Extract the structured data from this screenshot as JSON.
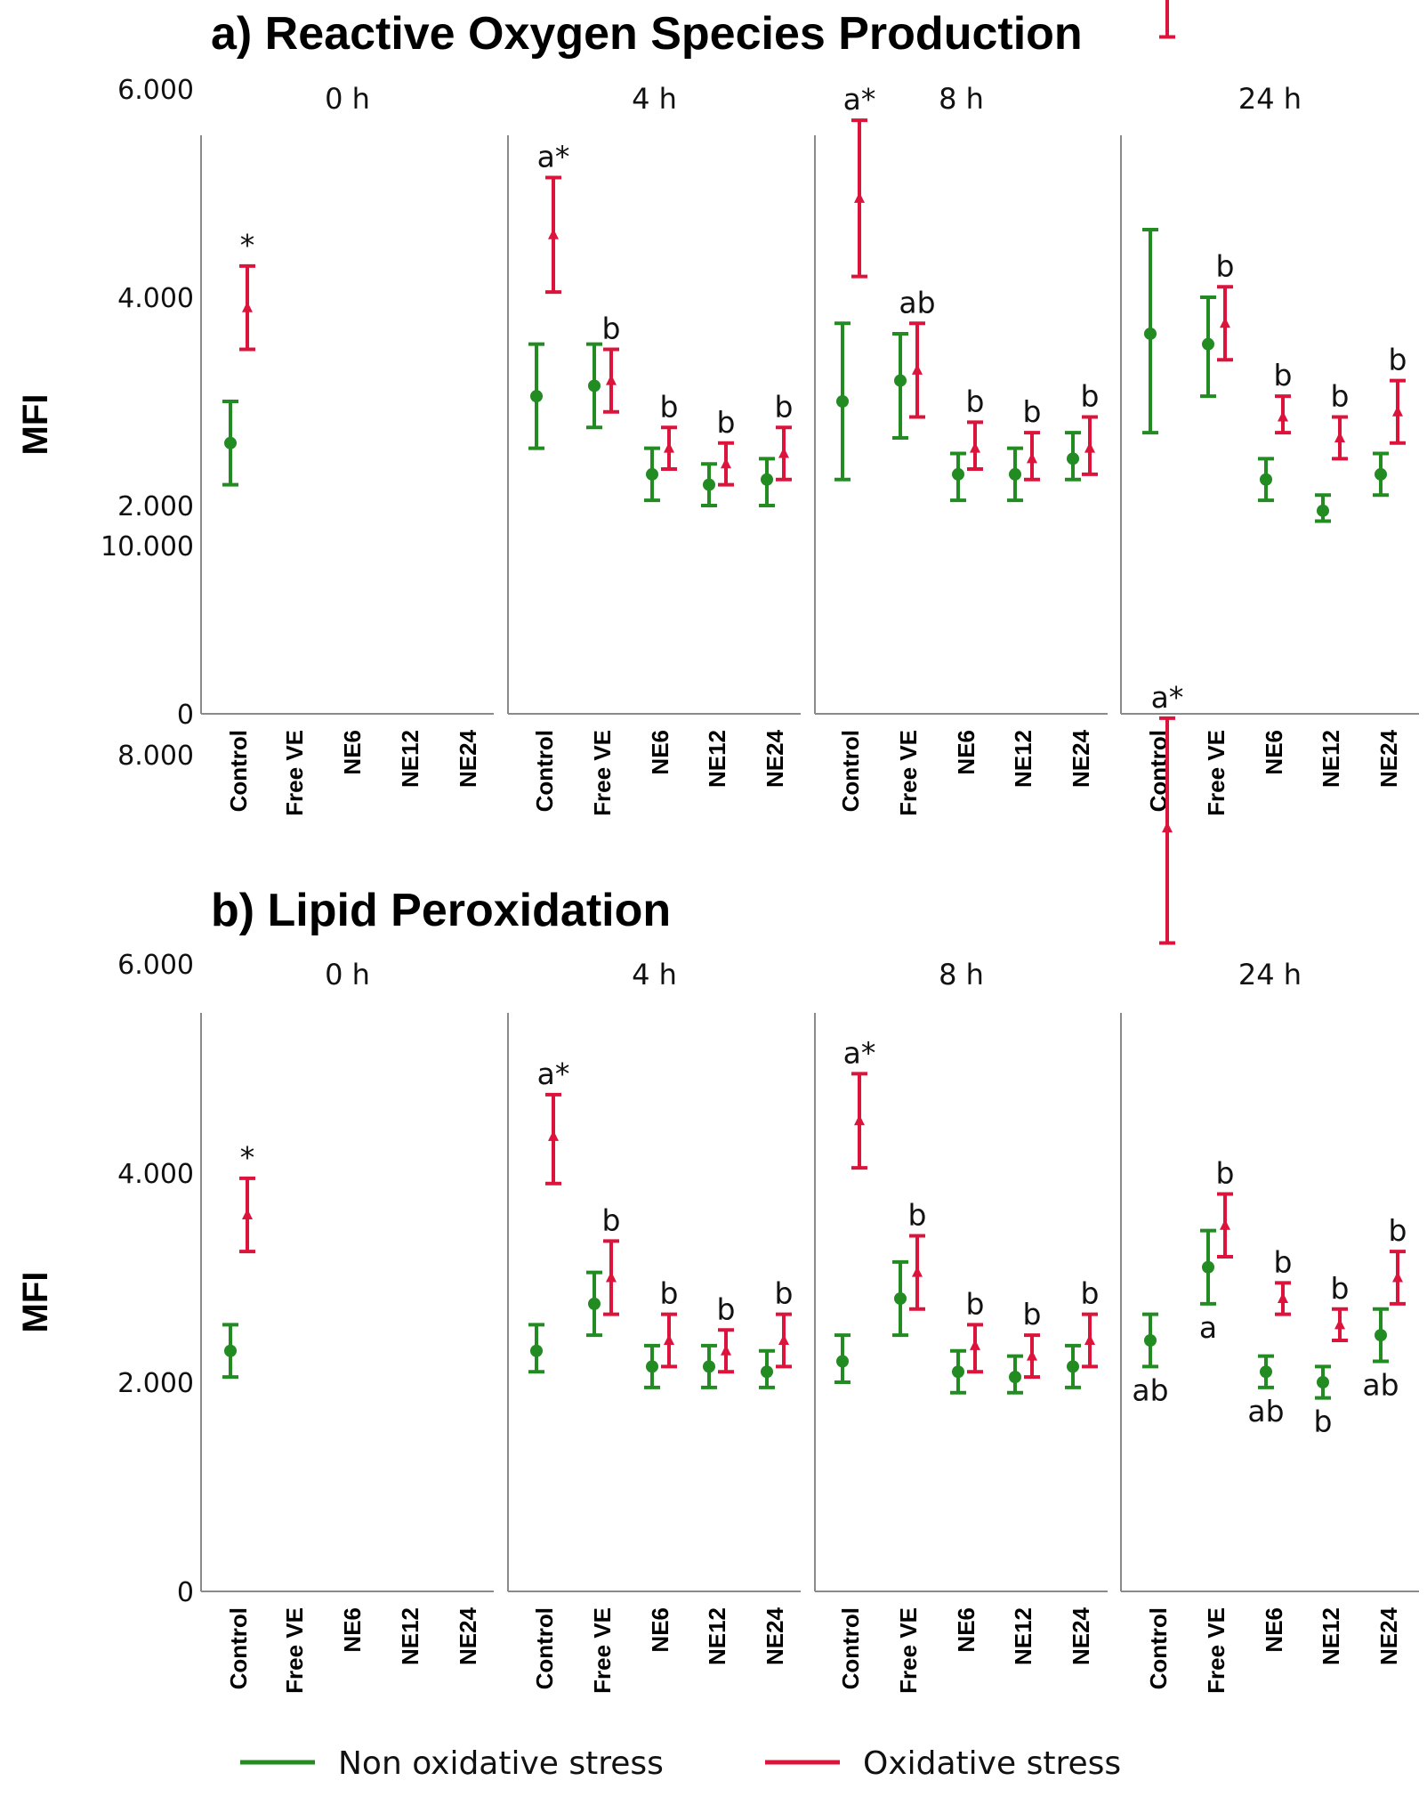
{
  "colors": {
    "non_oxidative": "#228b22",
    "oxidative": "#dc143c"
  },
  "legend": [
    {
      "label": "Non oxidative stress",
      "color": "#228b22"
    },
    {
      "label": "Oxidative stress",
      "color": "#dc143c"
    }
  ],
  "chart_data": [
    {
      "type": "scatter",
      "title": "a) Reactive Oxygen Species Production",
      "ylabel": "MFI",
      "ylim": [
        0,
        11000
      ],
      "yticks": [
        0,
        2000,
        4000,
        6000,
        8000,
        10000
      ],
      "ytick_labels": [
        "0",
        "2.000",
        "4.000",
        "6.000",
        "8.000",
        "10.000"
      ],
      "panels": [
        "0 h",
        "4 h",
        "8 h",
        "24 h"
      ],
      "categories": [
        "Control",
        "Free VE",
        "NE6",
        "NE12",
        "NE24"
      ],
      "series": [
        {
          "name": "Non oxidative stress",
          "points": [
            {
              "panel": "0 h",
              "category": "Control",
              "y": 2600,
              "low": 2200,
              "high": 3000
            },
            {
              "panel": "4 h",
              "category": "Control",
              "y": 3050,
              "low": 2550,
              "high": 3550
            },
            {
              "panel": "4 h",
              "category": "Free VE",
              "y": 3150,
              "low": 2750,
              "high": 3550
            },
            {
              "panel": "4 h",
              "category": "NE6",
              "y": 2300,
              "low": 2050,
              "high": 2550
            },
            {
              "panel": "4 h",
              "category": "NE12",
              "y": 2200,
              "low": 2000,
              "high": 2400
            },
            {
              "panel": "4 h",
              "category": "NE24",
              "y": 2250,
              "low": 2000,
              "high": 2450
            },
            {
              "panel": "8 h",
              "category": "Control",
              "y": 3000,
              "low": 2250,
              "high": 3750
            },
            {
              "panel": "8 h",
              "category": "Free VE",
              "y": 3200,
              "low": 2650,
              "high": 3650
            },
            {
              "panel": "8 h",
              "category": "NE6",
              "y": 2300,
              "low": 2050,
              "high": 2500
            },
            {
              "panel": "8 h",
              "category": "NE12",
              "y": 2300,
              "low": 2050,
              "high": 2550
            },
            {
              "panel": "8 h",
              "category": "NE24",
              "y": 2450,
              "low": 2250,
              "high": 2700
            },
            {
              "panel": "24 h",
              "category": "Control",
              "y": 3650,
              "low": 2700,
              "high": 4650
            },
            {
              "panel": "24 h",
              "category": "Free VE",
              "y": 3550,
              "low": 3050,
              "high": 4000
            },
            {
              "panel": "24 h",
              "category": "NE6",
              "y": 2250,
              "low": 2050,
              "high": 2450
            },
            {
              "panel": "24 h",
              "category": "NE12",
              "y": 1950,
              "low": 1850,
              "high": 2100
            },
            {
              "panel": "24 h",
              "category": "NE24",
              "y": 2300,
              "low": 2100,
              "high": 2500
            }
          ]
        },
        {
          "name": "Oxidative stress",
          "points": [
            {
              "panel": "0 h",
              "category": "Control",
              "y": 3900,
              "low": 3500,
              "high": 4300
            },
            {
              "panel": "4 h",
              "category": "Control",
              "y": 4600,
              "low": 4050,
              "high": 5150
            },
            {
              "panel": "4 h",
              "category": "Free VE",
              "y": 3200,
              "low": 2900,
              "high": 3500
            },
            {
              "panel": "4 h",
              "category": "NE6",
              "y": 2550,
              "low": 2350,
              "high": 2750
            },
            {
              "panel": "4 h",
              "category": "NE12",
              "y": 2400,
              "low": 2200,
              "high": 2600
            },
            {
              "panel": "4 h",
              "category": "NE24",
              "y": 2500,
              "low": 2250,
              "high": 2750
            },
            {
              "panel": "8 h",
              "category": "Control",
              "y": 4950,
              "low": 4200,
              "high": 5700
            },
            {
              "panel": "8 h",
              "category": "Free VE",
              "y": 3300,
              "low": 2850,
              "high": 3750
            },
            {
              "panel": "8 h",
              "category": "NE6",
              "y": 2550,
              "low": 2350,
              "high": 2800
            },
            {
              "panel": "8 h",
              "category": "NE12",
              "y": 2450,
              "low": 2250,
              "high": 2700
            },
            {
              "panel": "8 h",
              "category": "NE24",
              "y": 2550,
              "low": 2300,
              "high": 2850
            },
            {
              "panel": "24 h",
              "category": "Control",
              "y": 7850,
              "low": 6500,
              "high": 9250
            },
            {
              "panel": "24 h",
              "category": "Free VE",
              "y": 3750,
              "low": 3400,
              "high": 4100
            },
            {
              "panel": "24 h",
              "category": "NE6",
              "y": 2850,
              "low": 2700,
              "high": 3050
            },
            {
              "panel": "24 h",
              "category": "NE12",
              "y": 2650,
              "low": 2450,
              "high": 2850
            },
            {
              "panel": "24 h",
              "category": "NE24",
              "y": 2900,
              "low": 2600,
              "high": 3200
            }
          ]
        }
      ],
      "annotations": [
        {
          "panel": "0 h",
          "category": "Control",
          "series": "Oxidative stress",
          "text": "*",
          "position": "above"
        },
        {
          "panel": "4 h",
          "category": "Control",
          "series": "Oxidative stress",
          "text": "a*",
          "position": "above"
        },
        {
          "panel": "4 h",
          "category": "Free VE",
          "series": "Oxidative stress",
          "text": "b",
          "position": "above"
        },
        {
          "panel": "4 h",
          "category": "NE6",
          "series": "Oxidative stress",
          "text": "b",
          "position": "above"
        },
        {
          "panel": "4 h",
          "category": "NE12",
          "series": "Oxidative stress",
          "text": "b",
          "position": "above"
        },
        {
          "panel": "4 h",
          "category": "NE24",
          "series": "Oxidative stress",
          "text": "b",
          "position": "above"
        },
        {
          "panel": "8 h",
          "category": "Control",
          "series": "Oxidative stress",
          "text": "a*",
          "position": "above"
        },
        {
          "panel": "8 h",
          "category": "Free VE",
          "series": "Oxidative stress",
          "text": "ab",
          "position": "above"
        },
        {
          "panel": "8 h",
          "category": "NE6",
          "series": "Oxidative stress",
          "text": "b",
          "position": "above"
        },
        {
          "panel": "8 h",
          "category": "NE12",
          "series": "Oxidative stress",
          "text": "b",
          "position": "above"
        },
        {
          "panel": "8 h",
          "category": "NE24",
          "series": "Oxidative stress",
          "text": "b",
          "position": "above"
        },
        {
          "panel": "24 h",
          "category": "Control",
          "series": "Oxidative stress",
          "text": "a*",
          "position": "above"
        },
        {
          "panel": "24 h",
          "category": "Free VE",
          "series": "Oxidative stress",
          "text": "b",
          "position": "above"
        },
        {
          "panel": "24 h",
          "category": "NE6",
          "series": "Oxidative stress",
          "text": "b",
          "position": "above"
        },
        {
          "panel": "24 h",
          "category": "NE12",
          "series": "Oxidative stress",
          "text": "b",
          "position": "above"
        },
        {
          "panel": "24 h",
          "category": "NE24",
          "series": "Oxidative stress",
          "text": "b",
          "position": "above"
        }
      ]
    },
    {
      "type": "scatter",
      "title": "b) Lipid Peroxidation",
      "ylabel": "MFI",
      "ylim": [
        0,
        11000
      ],
      "yticks": [
        0,
        2000,
        4000,
        6000,
        8000,
        10000
      ],
      "ytick_labels": [
        "0",
        "2.000",
        "4.000",
        "6.000",
        "8.000",
        "10.000"
      ],
      "panels": [
        "0 h",
        "4 h",
        "8 h",
        "24 h"
      ],
      "categories": [
        "Control",
        "Free VE",
        "NE6",
        "NE12",
        "NE24"
      ],
      "series": [
        {
          "name": "Non oxidative stress",
          "points": [
            {
              "panel": "0 h",
              "category": "Control",
              "y": 2300,
              "low": 2050,
              "high": 2550
            },
            {
              "panel": "4 h",
              "category": "Control",
              "y": 2300,
              "low": 2100,
              "high": 2550
            },
            {
              "panel": "4 h",
              "category": "Free VE",
              "y": 2750,
              "low": 2450,
              "high": 3050
            },
            {
              "panel": "4 h",
              "category": "NE6",
              "y": 2150,
              "low": 1950,
              "high": 2350
            },
            {
              "panel": "4 h",
              "category": "NE12",
              "y": 2150,
              "low": 1950,
              "high": 2350
            },
            {
              "panel": "4 h",
              "category": "NE24",
              "y": 2100,
              "low": 1950,
              "high": 2300
            },
            {
              "panel": "8 h",
              "category": "Control",
              "y": 2200,
              "low": 2000,
              "high": 2450
            },
            {
              "panel": "8 h",
              "category": "Free VE",
              "y": 2800,
              "low": 2450,
              "high": 3150
            },
            {
              "panel": "8 h",
              "category": "NE6",
              "y": 2100,
              "low": 1900,
              "high": 2300
            },
            {
              "panel": "8 h",
              "category": "NE12",
              "y": 2050,
              "low": 1900,
              "high": 2250
            },
            {
              "panel": "8 h",
              "category": "NE24",
              "y": 2150,
              "low": 1950,
              "high": 2350
            },
            {
              "panel": "24 h",
              "category": "Control",
              "y": 2400,
              "low": 2150,
              "high": 2650
            },
            {
              "panel": "24 h",
              "category": "Free VE",
              "y": 3100,
              "low": 2750,
              "high": 3450
            },
            {
              "panel": "24 h",
              "category": "NE6",
              "y": 2100,
              "low": 1950,
              "high": 2250
            },
            {
              "panel": "24 h",
              "category": "NE12",
              "y": 2000,
              "low": 1850,
              "high": 2150
            },
            {
              "panel": "24 h",
              "category": "NE24",
              "y": 2450,
              "low": 2200,
              "high": 2700
            }
          ]
        },
        {
          "name": "Oxidative stress",
          "points": [
            {
              "panel": "0 h",
              "category": "Control",
              "y": 3600,
              "low": 3250,
              "high": 3950
            },
            {
              "panel": "4 h",
              "category": "Control",
              "y": 4350,
              "low": 3900,
              "high": 4750
            },
            {
              "panel": "4 h",
              "category": "Free VE",
              "y": 3000,
              "low": 2650,
              "high": 3350
            },
            {
              "panel": "4 h",
              "category": "NE6",
              "y": 2400,
              "low": 2150,
              "high": 2650
            },
            {
              "panel": "4 h",
              "category": "NE12",
              "y": 2300,
              "low": 2100,
              "high": 2500
            },
            {
              "panel": "4 h",
              "category": "NE24",
              "y": 2400,
              "low": 2150,
              "high": 2650
            },
            {
              "panel": "8 h",
              "category": "Control",
              "y": 4500,
              "low": 4050,
              "high": 4950
            },
            {
              "panel": "8 h",
              "category": "Free VE",
              "y": 3050,
              "low": 2700,
              "high": 3400
            },
            {
              "panel": "8 h",
              "category": "NE6",
              "y": 2350,
              "low": 2100,
              "high": 2550
            },
            {
              "panel": "8 h",
              "category": "NE12",
              "y": 2250,
              "low": 2050,
              "high": 2450
            },
            {
              "panel": "8 h",
              "category": "NE24",
              "y": 2400,
              "low": 2150,
              "high": 2650
            },
            {
              "panel": "24 h",
              "category": "Control",
              "y": 7300,
              "low": 6200,
              "high": 8350
            },
            {
              "panel": "24 h",
              "category": "Free VE",
              "y": 3500,
              "low": 3200,
              "high": 3800
            },
            {
              "panel": "24 h",
              "category": "NE6",
              "y": 2800,
              "low": 2650,
              "high": 2950
            },
            {
              "panel": "24 h",
              "category": "NE12",
              "y": 2550,
              "low": 2400,
              "high": 2700
            },
            {
              "panel": "24 h",
              "category": "NE24",
              "y": 3000,
              "low": 2750,
              "high": 3250
            }
          ]
        }
      ],
      "annotations": [
        {
          "panel": "0 h",
          "category": "Control",
          "series": "Oxidative stress",
          "text": "*",
          "position": "above"
        },
        {
          "panel": "4 h",
          "category": "Control",
          "series": "Oxidative stress",
          "text": "a*",
          "position": "above"
        },
        {
          "panel": "4 h",
          "category": "Free VE",
          "series": "Oxidative stress",
          "text": "b",
          "position": "above"
        },
        {
          "panel": "4 h",
          "category": "NE6",
          "series": "Oxidative stress",
          "text": "b",
          "position": "above"
        },
        {
          "panel": "4 h",
          "category": "NE12",
          "series": "Oxidative stress",
          "text": "b",
          "position": "above"
        },
        {
          "panel": "4 h",
          "category": "NE24",
          "series": "Oxidative stress",
          "text": "b",
          "position": "above"
        },
        {
          "panel": "8 h",
          "category": "Control",
          "series": "Oxidative stress",
          "text": "a*",
          "position": "above"
        },
        {
          "panel": "8 h",
          "category": "Free VE",
          "series": "Oxidative stress",
          "text": "b",
          "position": "above"
        },
        {
          "panel": "8 h",
          "category": "NE6",
          "series": "Oxidative stress",
          "text": "b",
          "position": "above"
        },
        {
          "panel": "8 h",
          "category": "NE12",
          "series": "Oxidative stress",
          "text": "b",
          "position": "above"
        },
        {
          "panel": "8 h",
          "category": "NE24",
          "series": "Oxidative stress",
          "text": "b",
          "position": "above"
        },
        {
          "panel": "24 h",
          "category": "Control",
          "series": "Oxidative stress",
          "text": "a*",
          "position": "above"
        },
        {
          "panel": "24 h",
          "category": "Free VE",
          "series": "Oxidative stress",
          "text": "b",
          "position": "above"
        },
        {
          "panel": "24 h",
          "category": "NE6",
          "series": "Oxidative stress",
          "text": "b",
          "position": "above"
        },
        {
          "panel": "24 h",
          "category": "NE12",
          "series": "Oxidative stress",
          "text": "b",
          "position": "above"
        },
        {
          "panel": "24 h",
          "category": "NE24",
          "series": "Oxidative stress",
          "text": "b",
          "position": "above"
        },
        {
          "panel": "24 h",
          "category": "Control",
          "series": "Non oxidative stress",
          "text": "ab",
          "position": "below"
        },
        {
          "panel": "24 h",
          "category": "Free VE",
          "series": "Non oxidative stress",
          "text": "a",
          "position": "below"
        },
        {
          "panel": "24 h",
          "category": "NE6",
          "series": "Non oxidative stress",
          "text": "ab",
          "position": "below"
        },
        {
          "panel": "24 h",
          "category": "NE12",
          "series": "Non oxidative stress",
          "text": "b",
          "position": "below"
        },
        {
          "panel": "24 h",
          "category": "NE24",
          "series": "Non oxidative stress",
          "text": "ab",
          "position": "below"
        }
      ]
    }
  ]
}
